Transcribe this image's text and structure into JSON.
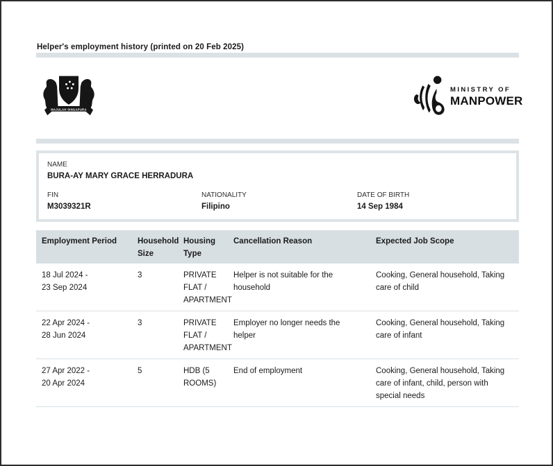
{
  "header": {
    "title": "Helper's employment history (printed on 20 Feb 2025)"
  },
  "logos": {
    "coat_of_arms": "singapore-coat-of-arms",
    "coat_motto": "MAJULAH SINGAPURA",
    "ministry_line1": "MINISTRY  OF",
    "ministry_line2": "MANPOWER"
  },
  "helper": {
    "name_label": "NAME",
    "name": "BURA-AY MARY GRACE HERRADURA",
    "fin_label": "FIN",
    "fin": "M3039321R",
    "nationality_label": "NATIONALITY",
    "nationality": "Filipino",
    "dob_label": "DATE OF BIRTH",
    "dob": "14 Sep 1984"
  },
  "table": {
    "columns": [
      "Employment Period",
      "Household Size",
      "Housing Type",
      "Cancellation Reason",
      "Expected Job Scope"
    ],
    "rows": [
      [
        "18 Jul 2024 -\n23 Sep 2024",
        "3",
        "PRIVATE FLAT / APARTMENT",
        "Helper is not suitable for the household",
        "Cooking, General household, Taking care of child"
      ],
      [
        "22 Apr 2024 -\n28 Jun 2024",
        "3",
        "PRIVATE FLAT / APARTMENT",
        "Employer no longer needs the helper",
        "Cooking, General household, Taking care of infant"
      ],
      [
        "27 Apr 2022 -\n20 Apr 2024",
        "5",
        "HDB (5 ROOMS)",
        "End of employment",
        "Cooking, General household, Taking care of infant, child, person with special needs"
      ]
    ]
  },
  "colors": {
    "divider": "#dbe1e5",
    "table_header_bg": "#d8dfe3",
    "row_border": "#d9e0e4",
    "info_box_border": "#dce3e7",
    "text": "#1a1a1a",
    "frame": "#2d2d2d"
  }
}
